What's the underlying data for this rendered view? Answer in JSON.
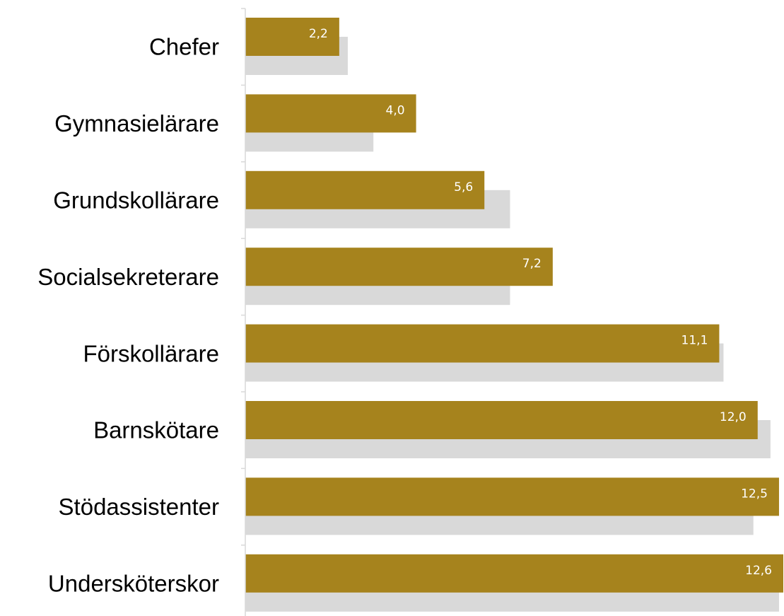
{
  "chart_data": {
    "type": "bar",
    "orientation": "horizontal",
    "categories": [
      "Chefer",
      "Gymnasielärare",
      "Grundskollärare",
      "Socialsekreterare",
      "Förskollärare",
      "Barnskötare",
      "Stödassistenter",
      "Undersköterskor"
    ],
    "series": [
      {
        "values": [
          2.2,
          4.0,
          5.6,
          7.2,
          11.1,
          12.0,
          12.5,
          12.6
        ],
        "value_labels": [
          "2,2",
          "4,0",
          "5,6",
          "7,2",
          "11,1",
          "12,0",
          "12,5",
          "12,6"
        ],
        "color": "#a6831d"
      },
      {
        "values": [
          2.4,
          3.0,
          6.2,
          6.2,
          11.2,
          12.3,
          11.9,
          12.5
        ],
        "color": "#d9d9d9"
      }
    ],
    "xlim": [
      0,
      12.6
    ],
    "grid": false,
    "legend": "none",
    "title": "",
    "xlabel": "",
    "ylabel": ""
  }
}
